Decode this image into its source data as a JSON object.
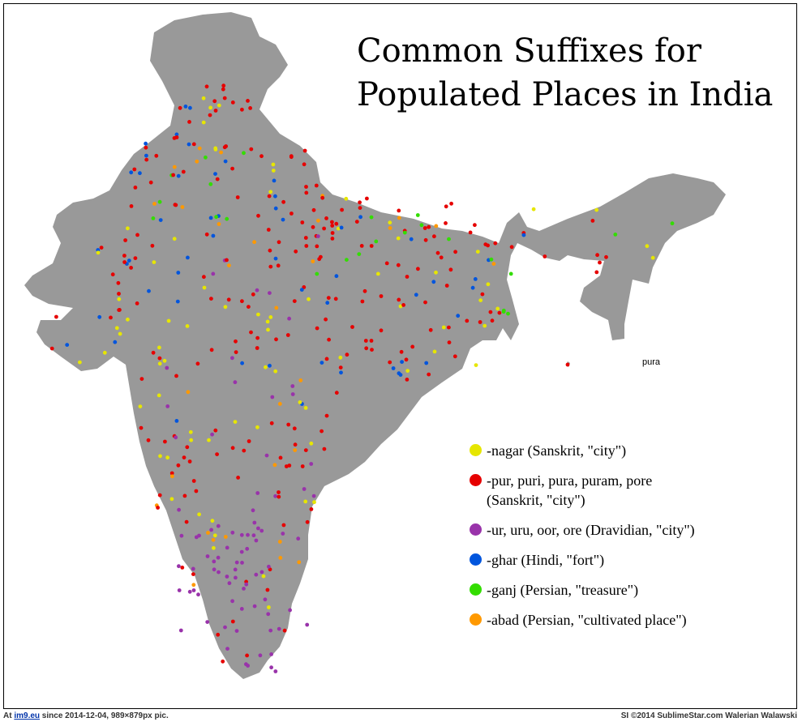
{
  "title": "Common Suffixes for\nPopulated Places in India",
  "map_label_pura": "pura",
  "legend": [
    {
      "color": "#e6e600",
      "color_name": "yellow",
      "text": "-nagar (Sanskrit, \"city\")"
    },
    {
      "color": "#e60000",
      "color_name": "red",
      "text": "-pur, puri, pura, puram, pore\n    (Sanskrit, \"city\")"
    },
    {
      "color": "#9933aa",
      "color_name": "purple",
      "text": "-ur, uru, oor, ore (Dravidian, \"city\")"
    },
    {
      "color": "#0055dd",
      "color_name": "blue",
      "text": "-ghar (Hindi, \"fort\")"
    },
    {
      "color": "#33dd00",
      "color_name": "green",
      "text": "-ganj (Persian, \"treasure\")"
    },
    {
      "color": "#ff9900",
      "color_name": "orange",
      "text": "-abad (Persian, \"cultivated place\")"
    }
  ],
  "footer": {
    "left_prefix": "At ",
    "left_link": "im9.eu",
    "left_suffix": " since 2014-12-04, 989×879px pic.",
    "right": "SI ©2014 SublimeStar.com Walerian Walawski"
  },
  "colors": {
    "land": "#999999",
    "border": "#000000",
    "background": "#ffffff"
  }
}
